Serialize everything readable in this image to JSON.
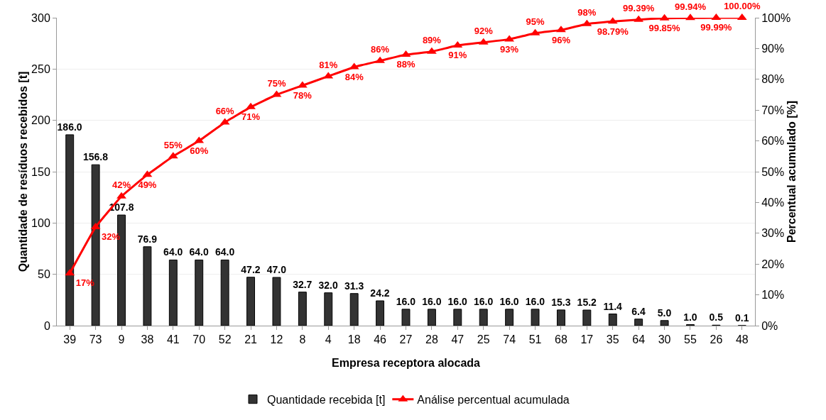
{
  "chart_data": {
    "type": "bar",
    "xlabel": "Empresa receptora alocada",
    "ylabel": "Quantidade de resíduos recebidos [t]",
    "y2label": "Percentual acumulado [%]",
    "categories": [
      "39",
      "73",
      "9",
      "38",
      "41",
      "70",
      "52",
      "21",
      "12",
      "8",
      "4",
      "18",
      "46",
      "27",
      "28",
      "47",
      "25",
      "74",
      "51",
      "68",
      "17",
      "35",
      "64",
      "30",
      "55",
      "26",
      "48"
    ],
    "series": [
      {
        "name": "Quantidade recebida [t]",
        "color": "#333333",
        "values": [
          186.0,
          156.8,
          107.8,
          76.9,
          64.0,
          64.0,
          64.0,
          47.2,
          47.0,
          32.7,
          32.0,
          31.3,
          24.2,
          16.0,
          16.0,
          16.0,
          16.0,
          16.0,
          16.0,
          15.3,
          15.2,
          11.4,
          6.4,
          5.0,
          1.0,
          0.5,
          0.1
        ],
        "value_labels": [
          "186.0",
          "156.8",
          "107.8",
          "76.9",
          "64.0",
          "64.0",
          "64.0",
          "47.2",
          "47.0",
          "32.7",
          "32.0",
          "31.3",
          "24.2",
          "16.0",
          "16.0",
          "16.0",
          "16.0",
          "16.0",
          "16.0",
          "15.3",
          "15.2",
          "11.4",
          "6.4",
          "5.0",
          "1.0",
          "0.5",
          "0.1"
        ]
      },
      {
        "name": "Análise percentual acumulada",
        "type": "line",
        "axis": "y2",
        "color": "#ff0000",
        "values": [
          17,
          32,
          42,
          49,
          55,
          60,
          66,
          71,
          75,
          78,
          81,
          84,
          86,
          88,
          89,
          91,
          92,
          93,
          95,
          96,
          98,
          98.79,
          99.39,
          99.85,
          99.94,
          99.99,
          100
        ],
        "value_labels": [
          "17%",
          "32%",
          "42%",
          "49%",
          "55%",
          "60%",
          "66%",
          "71%",
          "75%",
          "78%",
          "81%",
          "84%",
          "86%",
          "88%",
          "89%",
          "91%",
          "92%",
          "93%",
          "95%",
          "96%",
          "98%",
          "98.79%",
          "99.39%",
          "99.85%",
          "99.94%",
          "99.99%",
          "100.00%"
        ]
      }
    ],
    "ylim": [
      0,
      300
    ],
    "yticks": [
      0,
      50,
      100,
      150,
      200,
      250,
      300
    ],
    "y2lim": [
      0,
      100
    ],
    "y2ticks": [
      {
        "value": 0,
        "label": "0%"
      },
      {
        "value": 10,
        "label": "10%"
      },
      {
        "value": 20,
        "label": "20%"
      },
      {
        "value": 30,
        "label": "30%"
      },
      {
        "value": 40,
        "label": "40%"
      },
      {
        "value": 50,
        "label": "50%"
      },
      {
        "value": 60,
        "label": "60%"
      },
      {
        "value": 70,
        "label": "70%"
      },
      {
        "value": 80,
        "label": "80%"
      },
      {
        "value": 90,
        "label": "90%"
      },
      {
        "value": 100,
        "label": "100%"
      }
    ],
    "grid": "y",
    "legend": "bottom",
    "marker": "triangle"
  }
}
